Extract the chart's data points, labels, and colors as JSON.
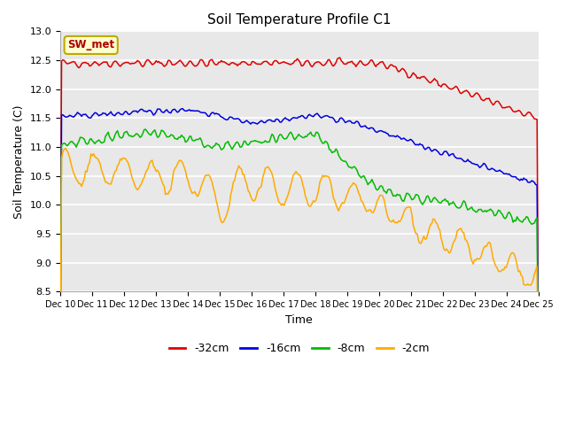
{
  "title": "Soil Temperature Profile C1",
  "xlabel": "Time",
  "ylabel": "Soil Temperature (C)",
  "ylim": [
    8.5,
    13.0
  ],
  "xtick_labels": [
    "Dec 10",
    "Dec 11",
    "Dec 12",
    "Dec 13",
    "Dec 14",
    "Dec 15",
    "Dec 16",
    "Dec 17",
    "Dec 18",
    "Dec 19",
    "Dec 20",
    "Dec 21",
    "Dec 22",
    "Dec 23",
    "Dec 24",
    "Dec 25"
  ],
  "ytick_values": [
    8.5,
    9.0,
    9.5,
    10.0,
    10.5,
    11.0,
    11.5,
    12.0,
    12.5,
    13.0
  ],
  "annotation_text": "SW_met",
  "annotation_box_color": "#ffffcc",
  "annotation_text_color": "#aa0000",
  "annotation_border_color": "#bbaa00",
  "plot_bg_color": "#e8e8e8",
  "legend_bg_color": "#ffffff",
  "grid_color": "#ffffff",
  "line_colors": {
    "-32cm": "#dd0000",
    "-16cm": "#0000dd",
    "-8cm": "#00bb00",
    "-2cm": "#ffaa00"
  },
  "legend_labels": [
    "-32cm",
    "-16cm",
    "-8cm",
    "-2cm"
  ],
  "legend_colors": [
    "#dd0000",
    "#0000dd",
    "#00bb00",
    "#ffaa00"
  ]
}
